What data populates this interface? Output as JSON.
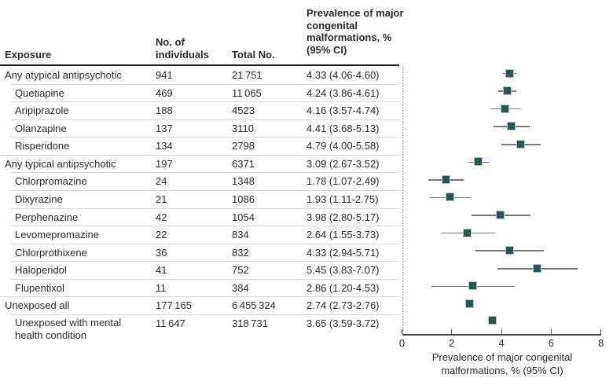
{
  "table": {
    "headers": {
      "exposure": "Exposure",
      "individuals": "No. of\nindividuals",
      "total": "Total No.",
      "prevalence": "Prevalence of major\ncongenital\nmalformations, %\n(95% CI)"
    },
    "rows": [
      {
        "exposure": "Any atypical antipsychotic",
        "indent": false,
        "individuals": "941",
        "total": "21 751",
        "prevalence": "4.33 (4.06-4.60)"
      },
      {
        "exposure": "Quetiapine",
        "indent": true,
        "individuals": "469",
        "total": "11 065",
        "prevalence": "4.24 (3.86-4.61)"
      },
      {
        "exposure": "Aripiprazole",
        "indent": true,
        "individuals": "188",
        "total": "4523",
        "prevalence": "4.16 (3.57-4.74)"
      },
      {
        "exposure": "Olanzapine",
        "indent": true,
        "individuals": "137",
        "total": "3110",
        "prevalence": "4.41 (3.68-5.13)"
      },
      {
        "exposure": "Risperidone",
        "indent": true,
        "individuals": "134",
        "total": "2798",
        "prevalence": "4.79 (4.00-5.58)"
      },
      {
        "exposure": "Any typical antipsychotic",
        "indent": false,
        "individuals": "197",
        "total": "6371",
        "prevalence": "3.09 (2.67-3.52)"
      },
      {
        "exposure": "Chlorpromazine",
        "indent": true,
        "individuals": "24",
        "total": "1348",
        "prevalence": "1.78 (1.07-2.49)"
      },
      {
        "exposure": "Dixyrazine",
        "indent": true,
        "individuals": "21",
        "total": "1086",
        "prevalence": "1.93 (1.11-2.75)"
      },
      {
        "exposure": "Perphenazine",
        "indent": true,
        "individuals": "42",
        "total": "1054",
        "prevalence": "3.98 (2.80-5.17)"
      },
      {
        "exposure": "Levomepromazine",
        "indent": true,
        "individuals": "22",
        "total": "834",
        "prevalence": "2.64 (1.55-3.73)"
      },
      {
        "exposure": "Chlorprothixene",
        "indent": true,
        "individuals": "36",
        "total": "832",
        "prevalence": "4.33 (2.94-5.71)"
      },
      {
        "exposure": "Haloperidol",
        "indent": true,
        "individuals": "41",
        "total": "752",
        "prevalence": "5.45 (3.83-7.07)"
      },
      {
        "exposure": "Flupentixol",
        "indent": true,
        "individuals": "11",
        "total": "384",
        "prevalence": "2.86 (1.20-4.53)"
      },
      {
        "exposure": "Unexposed all",
        "indent": false,
        "individuals": "177 165",
        "total": "6 455 324",
        "prevalence": "2.74 (2.73-2.76)"
      },
      {
        "exposure": "Unexposed with mental health condition",
        "indent": true,
        "individuals": "11 647",
        "total": "318 731",
        "prevalence": "3.65 (3.59-3.72)"
      }
    ]
  },
  "chart_data": {
    "type": "forest",
    "xlabel": "Prevalence of major congenital\nmalformations, % (95% CI)",
    "xlim": [
      0,
      8
    ],
    "xticks": [
      "0",
      "2",
      "4",
      "6",
      "8"
    ],
    "reference_line": "dotted-at-zero",
    "rows": [
      {
        "label": "Any atypical antipsychotic",
        "est": 4.33,
        "lo": 4.06,
        "hi": 4.6
      },
      {
        "label": "Quetiapine",
        "est": 4.24,
        "lo": 3.86,
        "hi": 4.61
      },
      {
        "label": "Aripiprazole",
        "est": 4.16,
        "lo": 3.57,
        "hi": 4.74
      },
      {
        "label": "Olanzapine",
        "est": 4.41,
        "lo": 3.68,
        "hi": 5.13
      },
      {
        "label": "Risperidone",
        "est": 4.79,
        "lo": 4.0,
        "hi": 5.58
      },
      {
        "label": "Any typical antipsychotic",
        "est": 3.09,
        "lo": 2.67,
        "hi": 3.52
      },
      {
        "label": "Chlorpromazine",
        "est": 1.78,
        "lo": 1.07,
        "hi": 2.49
      },
      {
        "label": "Dixyrazine",
        "est": 1.93,
        "lo": 1.11,
        "hi": 2.75
      },
      {
        "label": "Perphenazine",
        "est": 3.98,
        "lo": 2.8,
        "hi": 5.17
      },
      {
        "label": "Levomepromazine",
        "est": 2.64,
        "lo": 1.55,
        "hi": 3.73
      },
      {
        "label": "Chlorprothixene",
        "est": 4.33,
        "lo": 2.94,
        "hi": 5.71
      },
      {
        "label": "Haloperidol",
        "est": 5.45,
        "lo": 3.83,
        "hi": 7.07
      },
      {
        "label": "Flupentixol",
        "est": 2.86,
        "lo": 1.2,
        "hi": 4.53
      },
      {
        "label": "Unexposed all",
        "est": 2.74,
        "lo": 2.73,
        "hi": 2.76
      },
      {
        "label": "Unexposed with mental health condition",
        "est": 3.65,
        "lo": 3.59,
        "hi": 3.72
      }
    ],
    "colors": {
      "marker_fill": "#2b5454",
      "marker_border": "#a9cbc4",
      "whisker": "#777777",
      "reference_line": "#9a9a9a",
      "axis": "#4a4a4a",
      "row_separator": "#ddd8d1",
      "header_rule": "#1a1a1a",
      "text": "#2b2b2b"
    }
  }
}
